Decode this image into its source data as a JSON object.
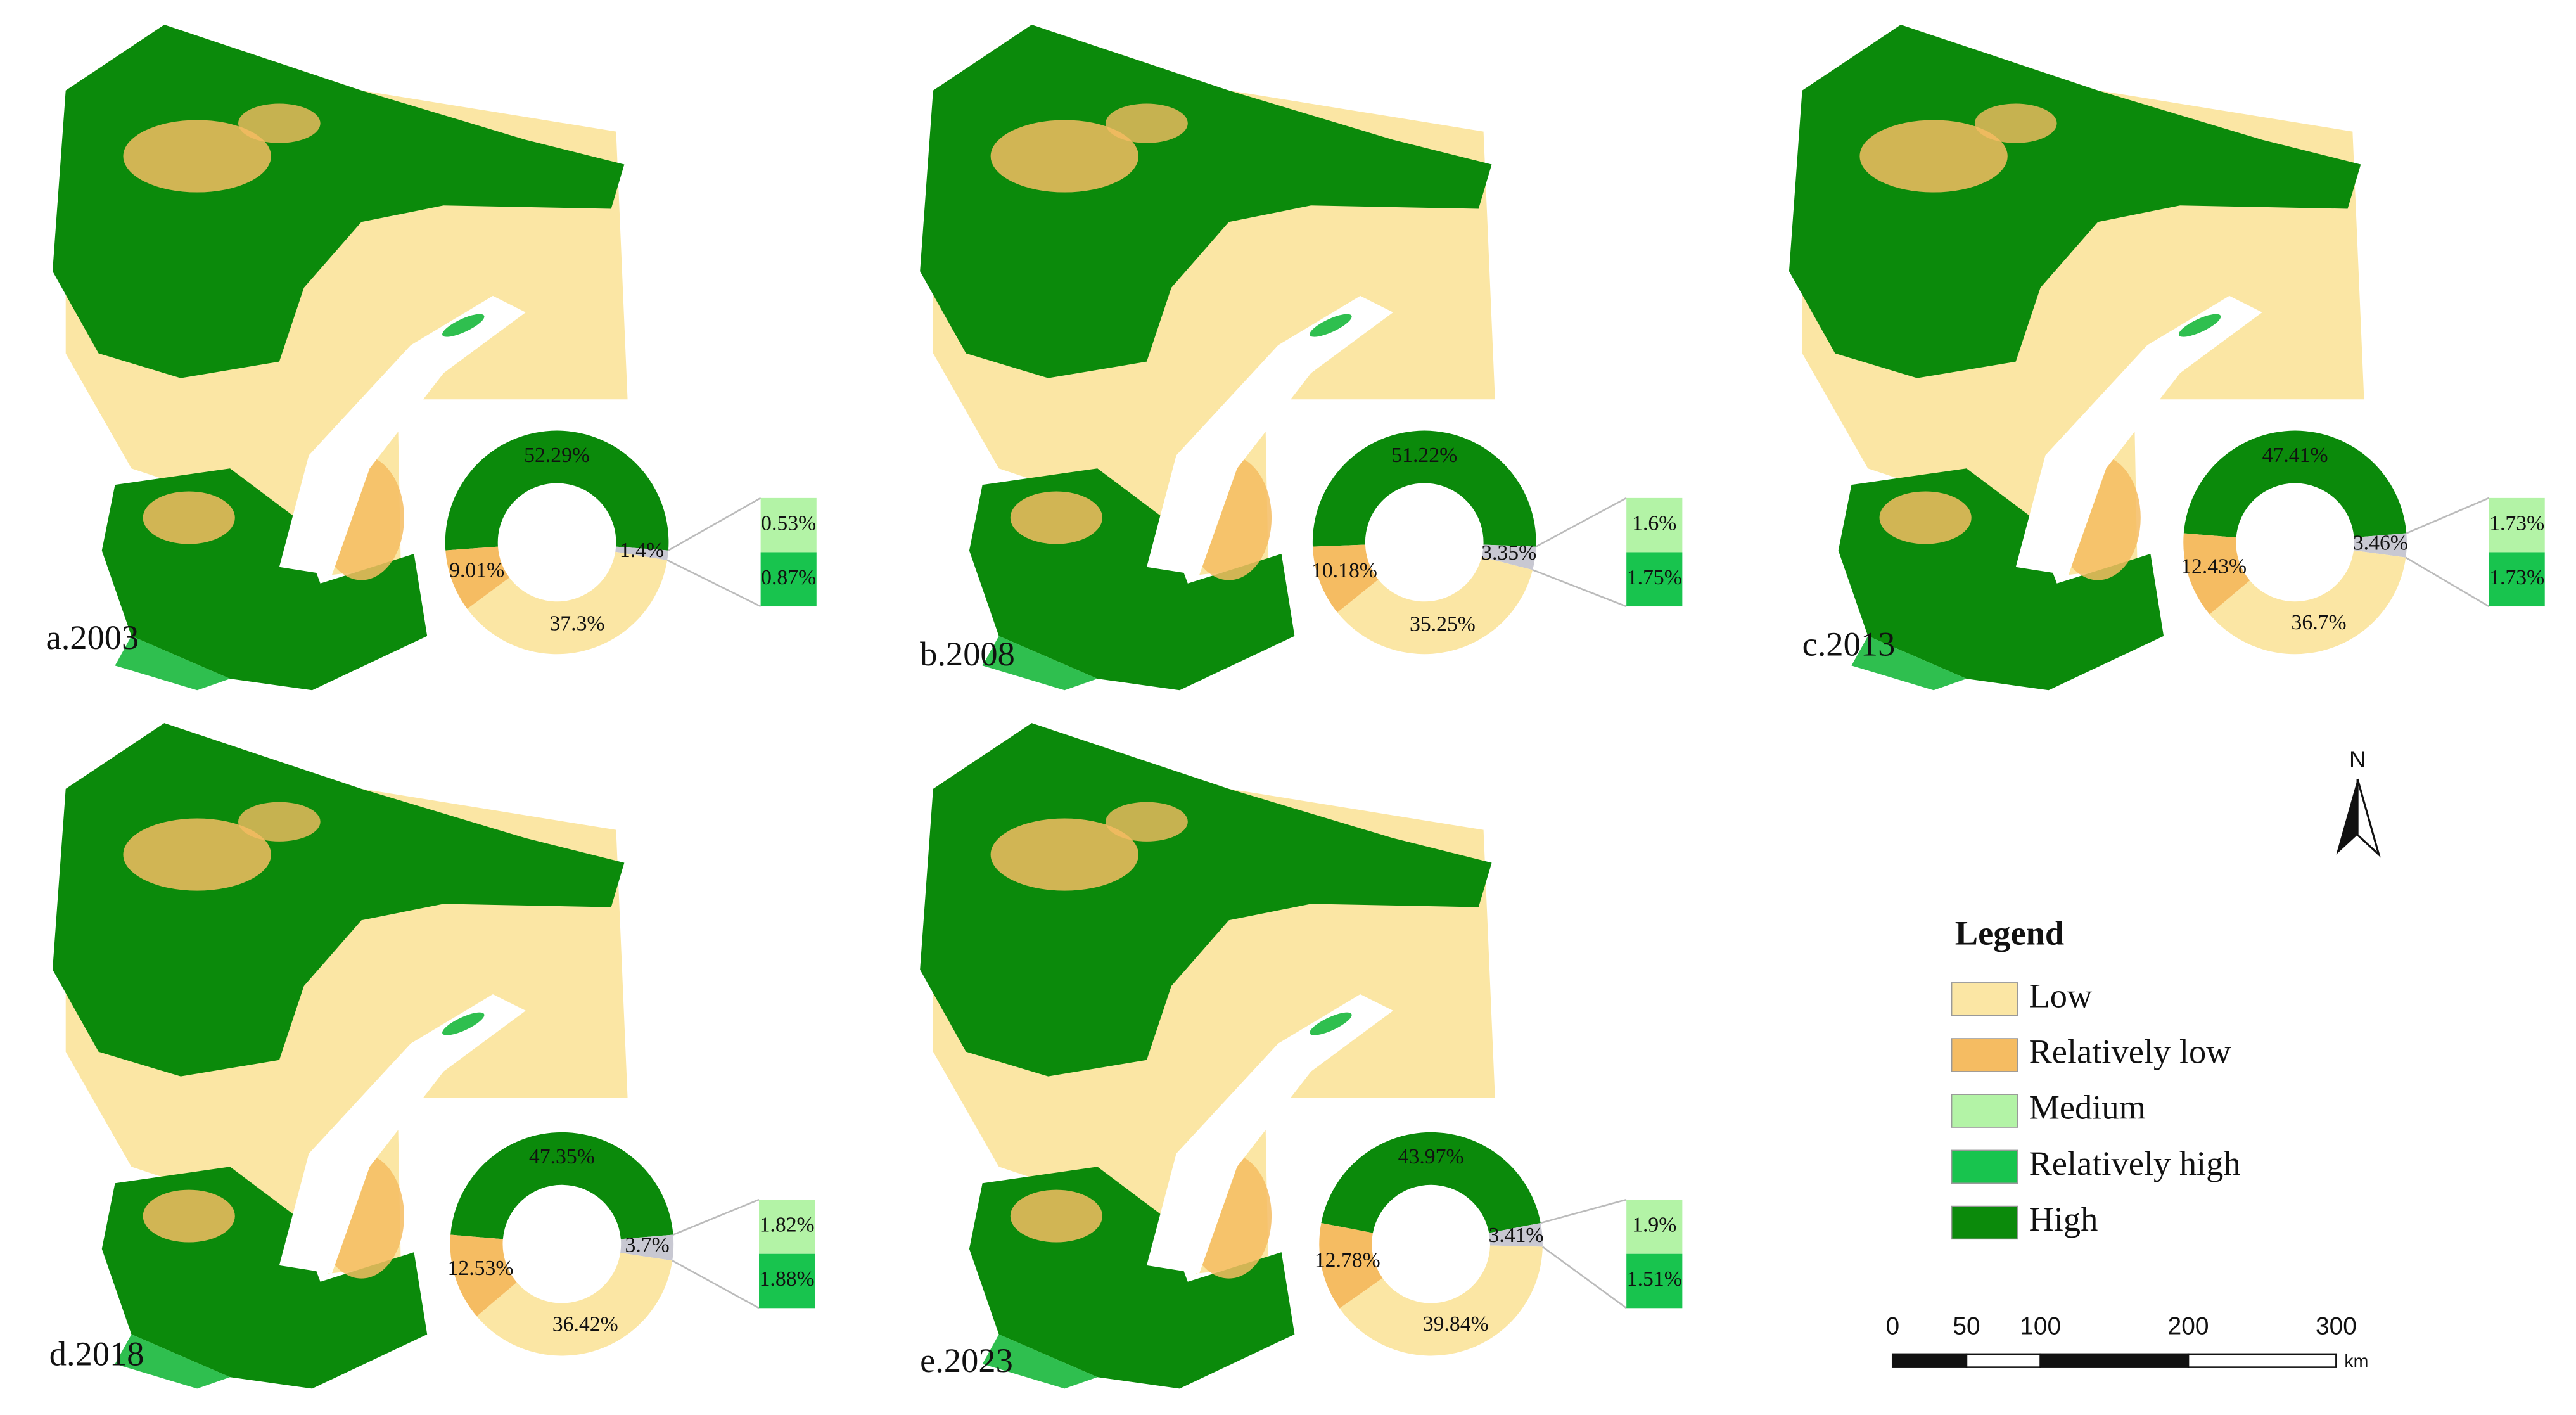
{
  "chart_data": [
    {
      "type": "pie",
      "title": "a.2003",
      "values": [
        52.29,
        1.4,
        37.3,
        9.01
      ],
      "value_labels": [
        "52.29%",
        "1.4%",
        "37.3%",
        "9.01%"
      ],
      "colors": [
        "#0b8a0b",
        "#c8c8d2",
        "#fbe6a4",
        "#f5bc62"
      ],
      "breakdown": {
        "values": [
          0.53,
          0.87
        ],
        "value_labels": [
          "0.53%",
          "0.87%"
        ],
        "colors": [
          "#b3f3a6",
          "#18c44e"
        ]
      }
    },
    {
      "type": "pie",
      "title": "b.2008",
      "values": [
        51.22,
        3.35,
        35.25,
        10.18
      ],
      "value_labels": [
        "51.22%",
        "3.35%",
        "35.25%",
        "10.18%"
      ],
      "colors": [
        "#0b8a0b",
        "#c8c8d2",
        "#fbe6a4",
        "#f5bc62"
      ],
      "breakdown": {
        "values": [
          1.6,
          1.75
        ],
        "value_labels": [
          "1.6%",
          "1.75%"
        ],
        "colors": [
          "#b3f3a6",
          "#18c44e"
        ]
      }
    },
    {
      "type": "pie",
      "title": "c.2013",
      "values": [
        47.41,
        3.46,
        36.7,
        12.43
      ],
      "value_labels": [
        "47.41%",
        "3.46%",
        "36.7%",
        "12.43%"
      ],
      "colors": [
        "#0b8a0b",
        "#c8c8d2",
        "#fbe6a4",
        "#f5bc62"
      ],
      "breakdown": {
        "values": [
          1.73,
          1.73
        ],
        "value_labels": [
          "1.73%",
          "1.73%"
        ],
        "colors": [
          "#b3f3a6",
          "#18c44e"
        ]
      }
    },
    {
      "type": "pie",
      "title": "d.2018",
      "values": [
        47.35,
        3.7,
        36.42,
        12.53
      ],
      "value_labels": [
        "47.35%",
        "3.7%",
        "36.42%",
        "12.53%"
      ],
      "colors": [
        "#0b8a0b",
        "#c8c8d2",
        "#fbe6a4",
        "#f5bc62"
      ],
      "breakdown": {
        "values": [
          1.82,
          1.88
        ],
        "value_labels": [
          "1.82%",
          "1.88%"
        ],
        "colors": [
          "#b3f3a6",
          "#18c44e"
        ]
      }
    },
    {
      "type": "pie",
      "title": "e.2023",
      "values": [
        43.97,
        3.41,
        39.84,
        12.78
      ],
      "value_labels": [
        "43.97%",
        "3.41%",
        "39.84%",
        "12.78%"
      ],
      "colors": [
        "#0b8a0b",
        "#c8c8d2",
        "#fbe6a4",
        "#f5bc62"
      ],
      "breakdown": {
        "values": [
          1.9,
          1.51
        ],
        "value_labels": [
          "1.9%",
          "1.51%"
        ],
        "colors": [
          "#b3f3a6",
          "#18c44e"
        ]
      }
    }
  ],
  "legend": {
    "title": "Legend",
    "items": [
      {
        "name": "Low",
        "color": "#fbe6a4"
      },
      {
        "name": "Relatively low",
        "color": "#f5bc62"
      },
      {
        "name": "Medium",
        "color": "#b3f3a6"
      },
      {
        "name": "Relatively high",
        "color": "#18c44e"
      },
      {
        "name": "High",
        "color": "#0b8a0b"
      }
    ]
  },
  "north": "N",
  "scale_bar": {
    "ticks": [
      0,
      50,
      100,
      200,
      300
    ],
    "lim": [
      0,
      300
    ],
    "unit": "km"
  }
}
